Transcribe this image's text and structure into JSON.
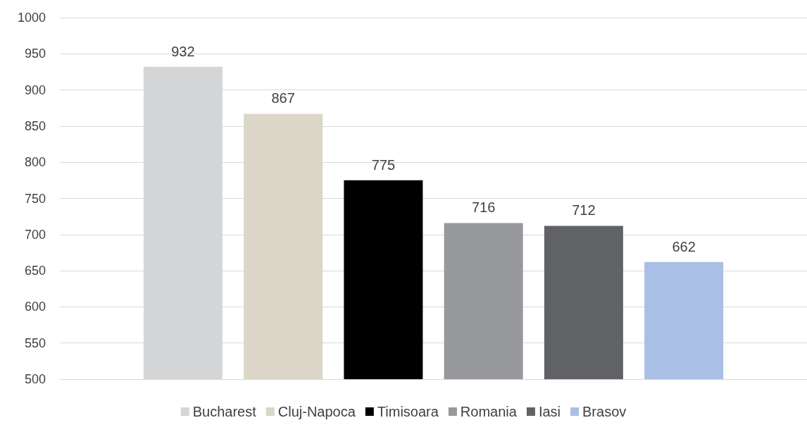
{
  "chart_data": {
    "type": "bar",
    "categories": [
      null
    ],
    "series": [
      {
        "name": "Bucharest",
        "color": "#d4d5d7",
        "values": [
          932
        ]
      },
      {
        "name": "Cluj-Napoca",
        "color": "#dcd6c8",
        "values": [
          867
        ]
      },
      {
        "name": "Timisoara",
        "color": "#000000",
        "values": [
          775
        ]
      },
      {
        "name": "Romania",
        "color": "#97989c",
        "values": [
          716
        ]
      },
      {
        "name": "Iasi",
        "color": "#616266",
        "values": [
          712
        ]
      },
      {
        "name": "Brasov",
        "color": "#a9bfe5",
        "values": [
          662
        ]
      }
    ],
    "ylim": [
      500,
      1000
    ],
    "yticks": [
      500,
      550,
      600,
      650,
      700,
      750,
      800,
      850,
      900,
      950,
      1000
    ],
    "grid": "y",
    "legend": "bottom",
    "data_labels": true
  }
}
